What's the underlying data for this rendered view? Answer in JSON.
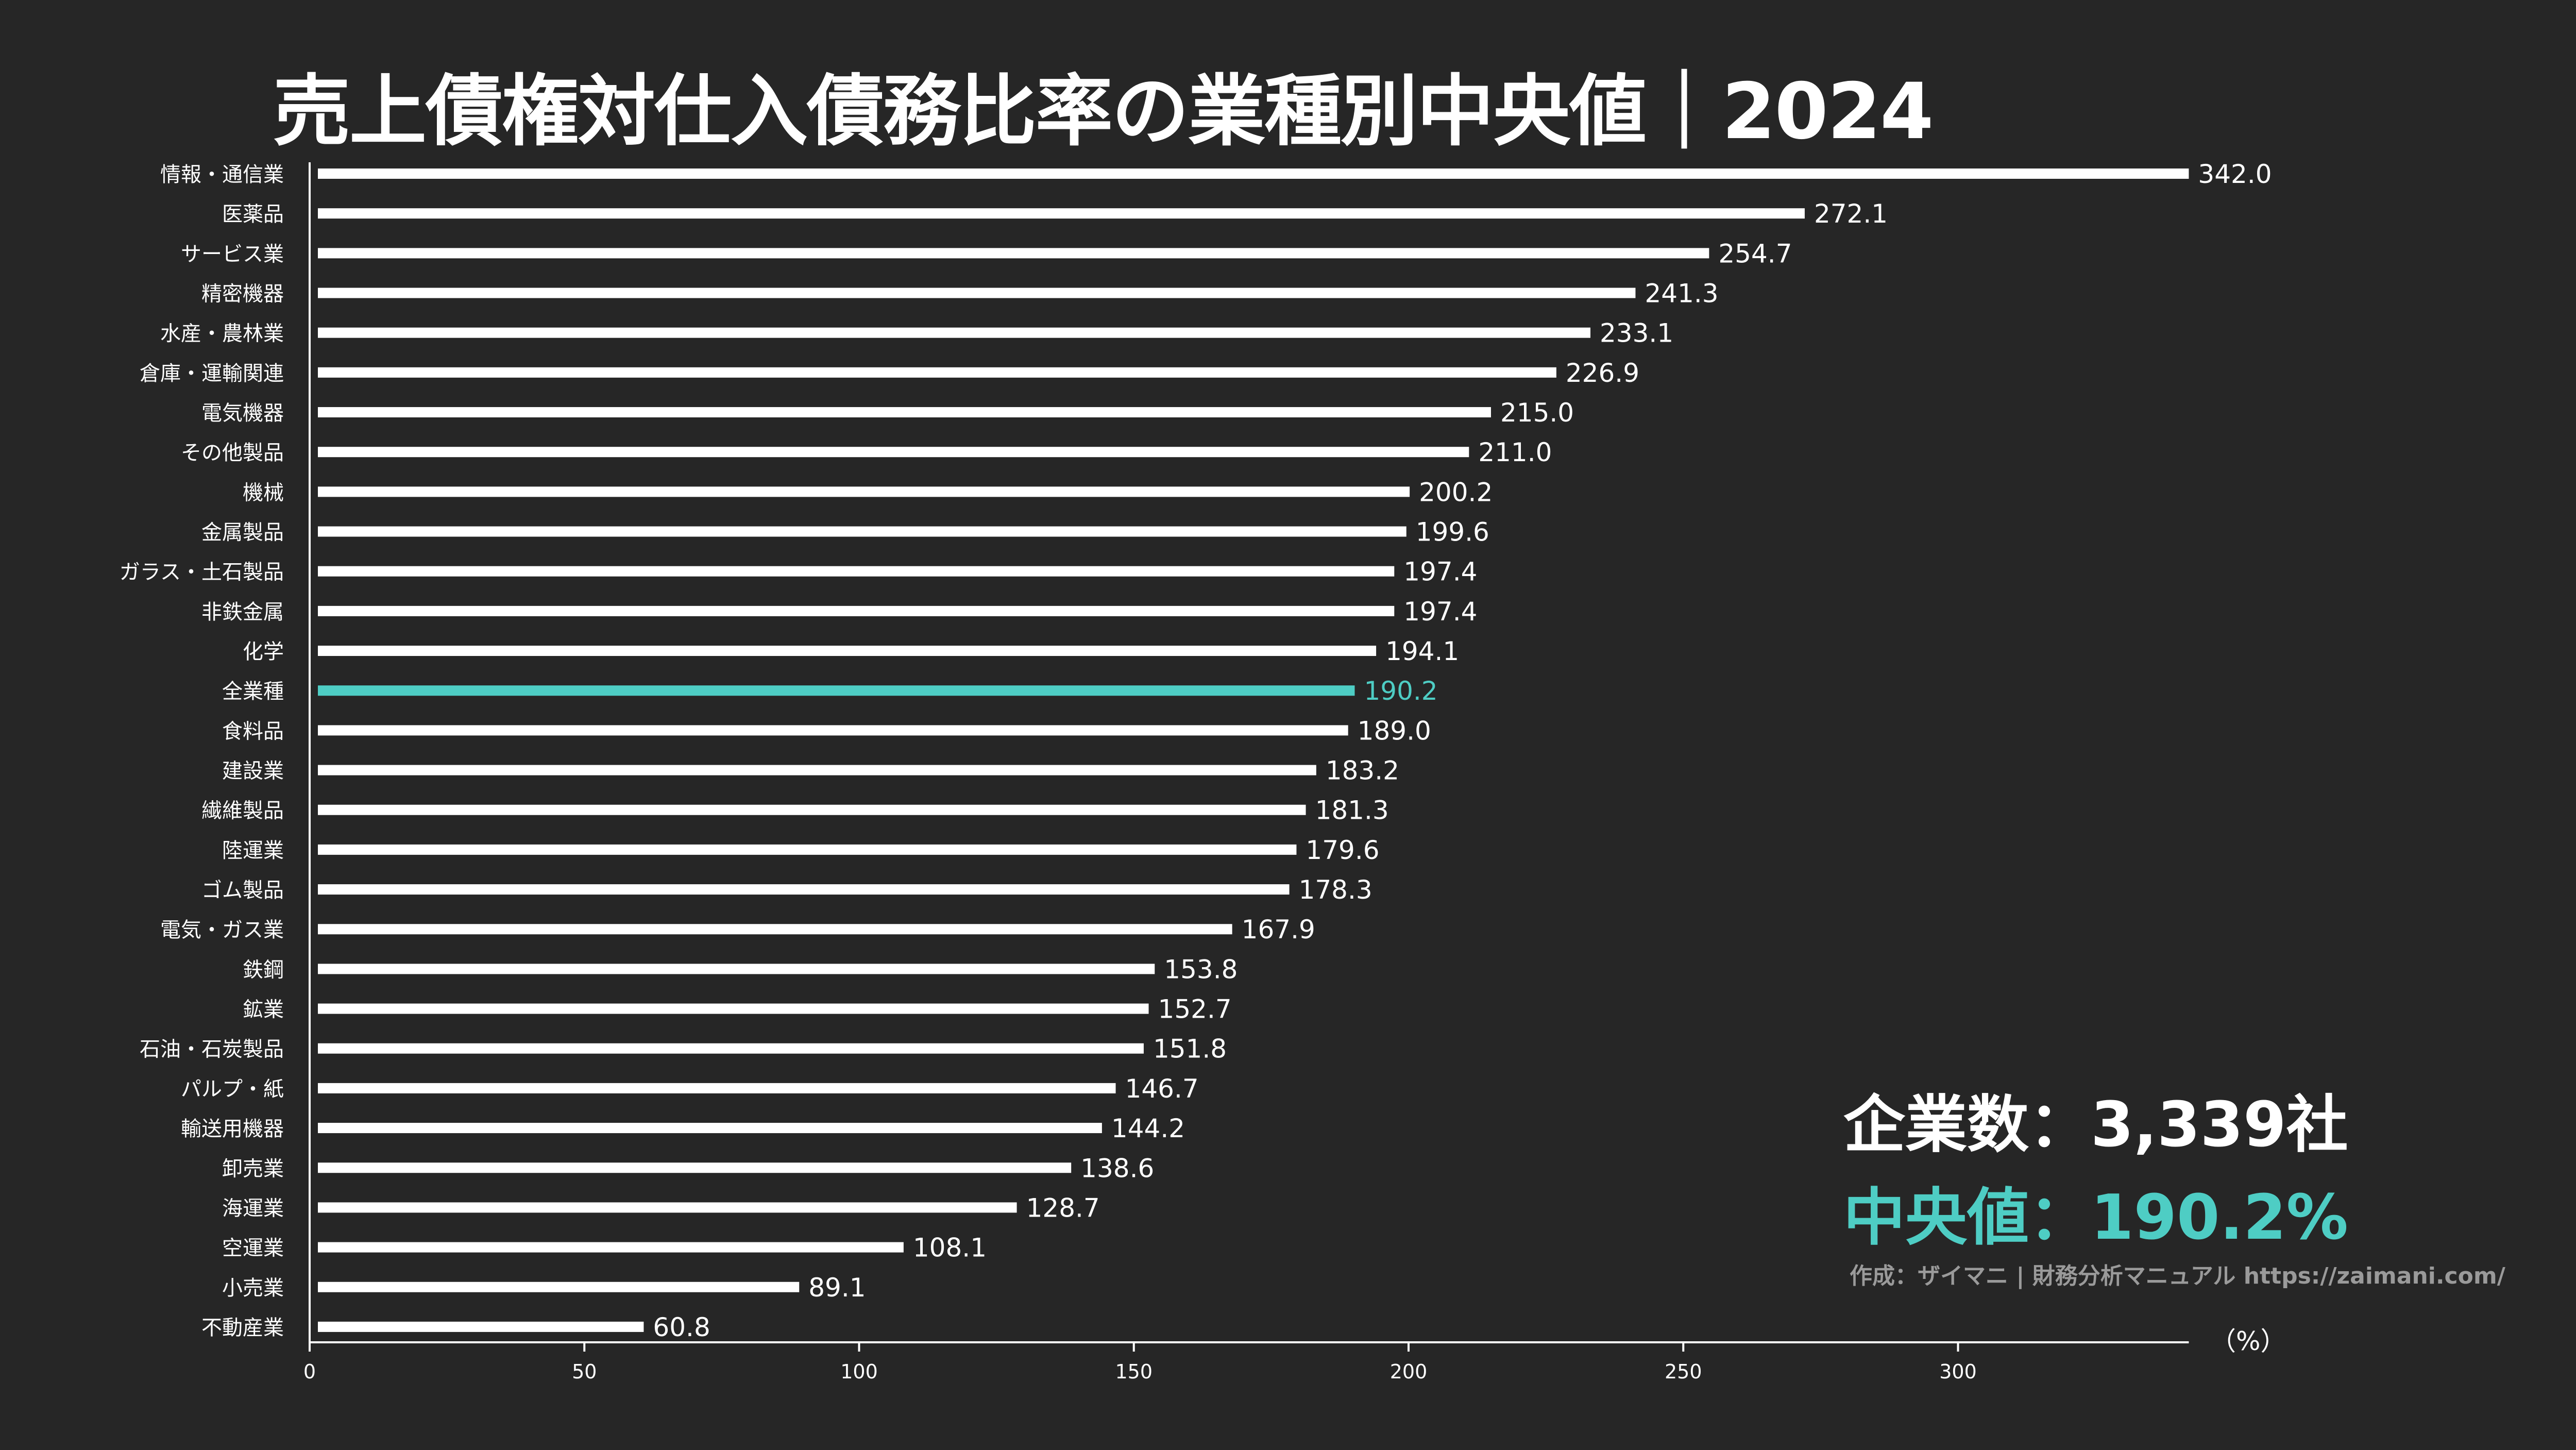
{
  "colors": {
    "background": "#262626",
    "bar": "#ffffff",
    "highlight": "#4ecdc4",
    "text": "#ffffff",
    "credit": "#9a9a9a"
  },
  "chart_data": {
    "type": "bar",
    "orientation": "horizontal",
    "title": "売上債権対仕入債務比率の業種別中央値｜2024",
    "xlabel": "（%）",
    "ylabel": "",
    "xlim": [
      0,
      342
    ],
    "xticks": [
      0,
      50,
      100,
      150,
      200,
      250,
      300
    ],
    "highlight_category": "全業種",
    "categories": [
      "情報・通信業",
      "医薬品",
      "サービス業",
      "精密機器",
      "水産・農林業",
      "倉庫・運輸関連",
      "電気機器",
      "その他製品",
      "機械",
      "金属製品",
      "ガラス・土石製品",
      "非鉄金属",
      "化学",
      "全業種",
      "食料品",
      "建設業",
      "繊維製品",
      "陸運業",
      "ゴム製品",
      "電気・ガス業",
      "鉄鋼",
      "鉱業",
      "石油・石炭製品",
      "パルプ・紙",
      "輸送用機器",
      "卸売業",
      "海運業",
      "空運業",
      "小売業",
      "不動産業"
    ],
    "values": [
      342.0,
      272.1,
      254.7,
      241.3,
      233.1,
      226.9,
      215.0,
      211.0,
      200.2,
      199.6,
      197.4,
      197.4,
      194.1,
      190.2,
      189.0,
      183.2,
      181.3,
      179.6,
      178.3,
      167.9,
      153.8,
      152.7,
      151.8,
      146.7,
      144.2,
      138.6,
      128.7,
      108.1,
      89.1,
      60.8
    ],
    "value_labels": [
      "342.0",
      "272.1",
      "254.7",
      "241.3",
      "233.1",
      "226.9",
      "215.0",
      "211.0",
      "200.2",
      "199.6",
      "197.4",
      "197.4",
      "194.1",
      "190.2",
      "189.0",
      "183.2",
      "181.3",
      "179.6",
      "178.3",
      "167.9",
      "153.8",
      "152.7",
      "151.8",
      "146.7",
      "144.2",
      "138.6",
      "128.7",
      "108.1",
      "89.1",
      "60.8"
    ],
    "grid": false,
    "legend": "none"
  },
  "stats": {
    "company_count_label": "企業数：",
    "company_count_value": "3,339社",
    "median_label": "中央値：",
    "median_value": "190.2%"
  },
  "credit": "作成：ザイマニ | 財務分析マニュアル https://zaimani.com/"
}
